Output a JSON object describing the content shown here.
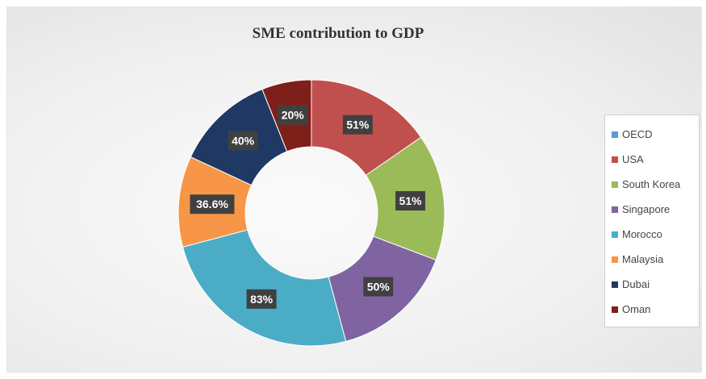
{
  "chart_data": {
    "type": "pie",
    "title": "SME contribution  to GDP",
    "legend_position": "right",
    "categories": [
      "OECD",
      "USA",
      "South Korea",
      "Singapore",
      "Morocco",
      "Malaysia",
      "Dubai",
      "Oman"
    ],
    "series": [
      {
        "values": [
          0,
          51,
          51,
          50,
          83,
          36.6,
          40,
          20
        ],
        "labels": [
          "",
          "51%",
          "51%",
          "50%",
          "83%",
          "36.6%",
          "40%",
          "20%"
        ]
      }
    ],
    "colors": [
      "#5b9bd5",
      "#c0504d",
      "#9bbb59",
      "#8064a2",
      "#4bacc6",
      "#f79646",
      "#1f3864",
      "#7f1f1a"
    ]
  }
}
